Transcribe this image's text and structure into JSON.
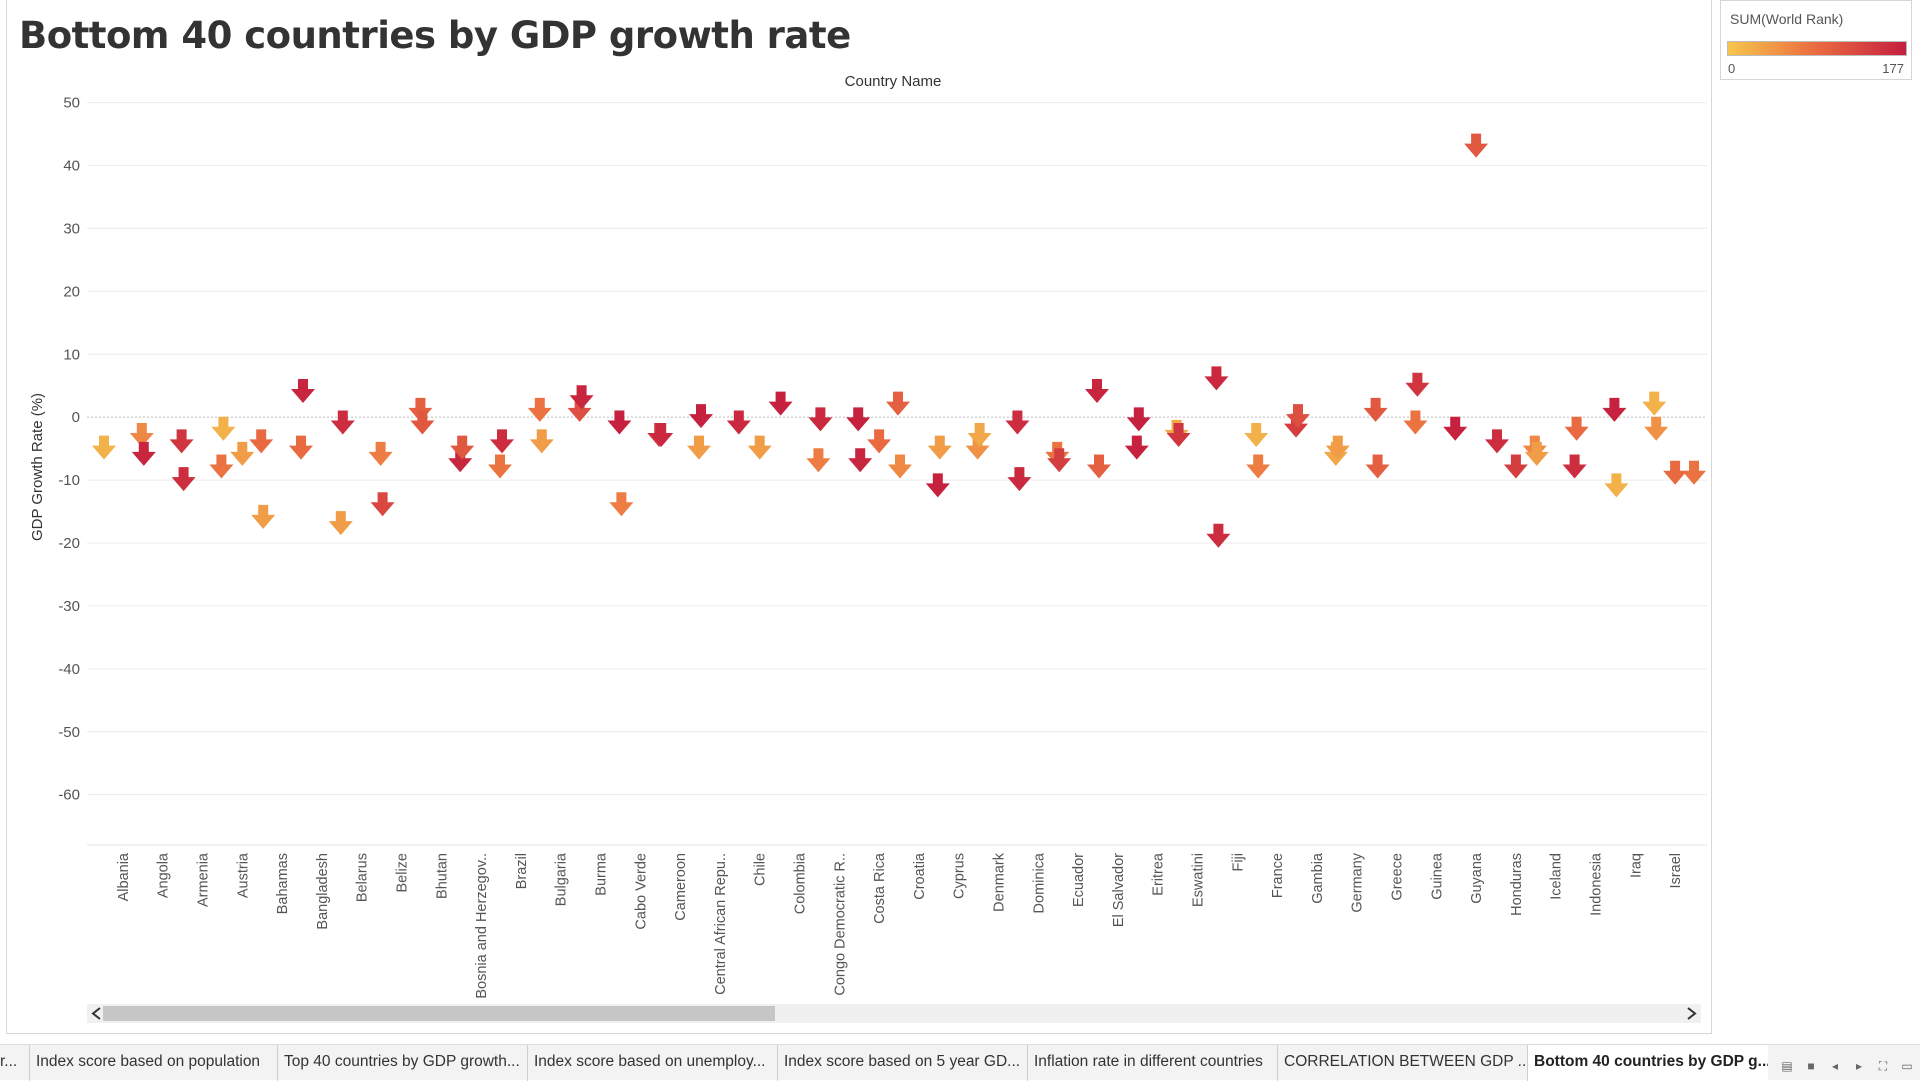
{
  "title": "Bottom 40 countries by GDP growth rate",
  "chart_data": {
    "type": "scatter",
    "mark": "down-arrow",
    "title": "Bottom 40 countries by GDP growth rate",
    "x_header": "Country Name",
    "ylabel": "GDP Growth Rate (%)",
    "ylim": [
      -68,
      52
    ],
    "y_ticks": [
      50,
      40,
      30,
      20,
      10,
      0,
      -10,
      -20,
      -30,
      -40,
      -50,
      -60
    ],
    "grid": true,
    "color_encoding": {
      "field": "SUM(World Rank)",
      "min": 0,
      "max": 177,
      "min_color": "#f6c64c",
      "mid_color": "#ea6a40",
      "max_color": "#c51f3f"
    },
    "categories": [
      "Albania",
      "Angola",
      "Armenia",
      "Austria",
      "Bahamas",
      "Bangladesh",
      "Belarus",
      "Belize",
      "Bhutan",
      "Bosnia and Herzegov..",
      "Brazil",
      "Bulgaria",
      "Burma",
      "Cabo Verde",
      "Cameroon",
      "Central African Repu..",
      "Chile",
      "Colombia",
      "Congo Democratic R..",
      "Costa Rica",
      "Croatia",
      "Cyprus",
      "Denmark",
      "Dominica",
      "Ecuador",
      "El Salvador",
      "Eritrea",
      "Eswatini",
      "Fiji",
      "France",
      "Gambia",
      "Germany",
      "Greece",
      "Guinea",
      "Guyana",
      "Honduras",
      "Iceland",
      "Indonesia",
      "Iraq",
      "Israel"
    ],
    "points": [
      {
        "country": "Albania",
        "y": -5,
        "rank": 20
      },
      {
        "country": "Albania",
        "y": -3,
        "rank": 60
      },
      {
        "country": "Angola",
        "y": -6,
        "rank": 170
      },
      {
        "country": "Angola",
        "y": -4,
        "rank": 150
      },
      {
        "country": "Armenia",
        "y": -10,
        "rank": 160
      },
      {
        "country": "Armenia",
        "y": -8,
        "rank": 80
      },
      {
        "country": "Austria",
        "y": -2,
        "rank": 20
      },
      {
        "country": "Austria",
        "y": -6,
        "rank": 40
      },
      {
        "country": "Austria",
        "y": -4,
        "rank": 90
      },
      {
        "country": "Bahamas",
        "y": -16,
        "rank": 40
      },
      {
        "country": "Bahamas",
        "y": -5,
        "rank": 90
      },
      {
        "country": "Bangladesh",
        "y": 4,
        "rank": 170
      },
      {
        "country": "Bangladesh",
        "y": -17,
        "rank": 40
      },
      {
        "country": "Belarus",
        "y": -1,
        "rank": 160
      },
      {
        "country": "Belarus",
        "y": -6,
        "rank": 70
      },
      {
        "country": "Belize",
        "y": -14,
        "rank": 130
      },
      {
        "country": "Belize",
        "y": 1,
        "rank": 100
      },
      {
        "country": "Bhutan",
        "y": -1,
        "rank": 110
      },
      {
        "country": "Bhutan",
        "y": -7,
        "rank": 170
      },
      {
        "country": "Bosnia and Herzegov..",
        "y": -5,
        "rank": 110
      },
      {
        "country": "Bosnia and Herzegov..",
        "y": -8,
        "rank": 80
      },
      {
        "country": "Brazil",
        "y": -4,
        "rank": 160
      },
      {
        "country": "Brazil",
        "y": 1,
        "rank": 80
      },
      {
        "country": "Bulgaria",
        "y": -4,
        "rank": 40
      },
      {
        "country": "Bulgaria",
        "y": 1,
        "rank": 120
      },
      {
        "country": "Burma",
        "y": 3,
        "rank": 170
      },
      {
        "country": "Burma",
        "y": -1,
        "rank": 175
      },
      {
        "country": "Cabo Verde",
        "y": -14,
        "rank": 70
      },
      {
        "country": "Cabo Verde",
        "y": -3,
        "rank": 150
      },
      {
        "country": "Cameroon",
        "y": -3,
        "rank": 165
      },
      {
        "country": "Cameroon",
        "y": -5,
        "rank": 40
      },
      {
        "country": "Central African Repu..",
        "y": 0,
        "rank": 175
      },
      {
        "country": "Central African Repu..",
        "y": -1,
        "rank": 165
      },
      {
        "country": "Chile",
        "y": -5,
        "rank": 40
      },
      {
        "country": "Colombia",
        "y": 2,
        "rank": 175
      },
      {
        "country": "Colombia",
        "y": -7,
        "rank": 70
      },
      {
        "country": "Congo Democratic R..",
        "y": -0.5,
        "rank": 165
      },
      {
        "country": "Congo Democratic R..",
        "y": -0.5,
        "rank": 175
      },
      {
        "country": "Costa Rica",
        "y": -7,
        "rank": 170
      },
      {
        "country": "Costa Rica",
        "y": -4,
        "rank": 90
      },
      {
        "country": "Costa Rica",
        "y": 2,
        "rank": 100
      },
      {
        "country": "Croatia",
        "y": -8,
        "rank": 60
      },
      {
        "country": "Croatia",
        "y": -11,
        "rank": 175
      },
      {
        "country": "Cyprus",
        "y": -5,
        "rank": 40
      },
      {
        "country": "Cyprus",
        "y": -5,
        "rank": 50
      },
      {
        "country": "Denmark",
        "y": -3,
        "rank": 30
      },
      {
        "country": "Denmark",
        "y": -1,
        "rank": 160
      },
      {
        "country": "Dominica",
        "y": -10,
        "rank": 165
      },
      {
        "country": "Dominica",
        "y": -6,
        "rank": 80
      },
      {
        "country": "Ecuador",
        "y": -7,
        "rank": 140
      },
      {
        "country": "Ecuador",
        "y": 4,
        "rank": 170
      },
      {
        "country": "El Salvador",
        "y": -8,
        "rank": 100
      },
      {
        "country": "El Salvador",
        "y": -5,
        "rank": 175
      },
      {
        "country": "Eritrea",
        "y": -0.5,
        "rank": 175
      },
      {
        "country": "Eritrea",
        "y": -2.5,
        "rank": 30
      },
      {
        "country": "Eswatini",
        "y": -3,
        "rank": 150
      },
      {
        "country": "Eswatini",
        "y": 6,
        "rank": 165
      },
      {
        "country": "Fiji",
        "y": -19,
        "rank": 160
      },
      {
        "country": "Fiji",
        "y": -3,
        "rank": 20
      },
      {
        "country": "France",
        "y": -8,
        "rank": 70
      },
      {
        "country": "France",
        "y": -1.5,
        "rank": 140
      },
      {
        "country": "Gambia",
        "y": 0,
        "rank": 120
      },
      {
        "country": "Gambia",
        "y": -6,
        "rank": 30
      },
      {
        "country": "Germany",
        "y": -5,
        "rank": 40
      },
      {
        "country": "Germany",
        "y": 1,
        "rank": 110
      },
      {
        "country": "Greece",
        "y": -8,
        "rank": 100
      },
      {
        "country": "Greece",
        "y": -1,
        "rank": 80
      },
      {
        "country": "Guinea",
        "y": 5,
        "rank": 150
      },
      {
        "country": "Guinea",
        "y": -2,
        "rank": 175
      },
      {
        "country": "Guyana",
        "y": 43,
        "rank": 110
      },
      {
        "country": "Honduras",
        "y": -4,
        "rank": 160
      },
      {
        "country": "Honduras",
        "y": -8,
        "rank": 140
      },
      {
        "country": "Honduras",
        "y": -5,
        "rank": 60
      },
      {
        "country": "Iceland",
        "y": -6,
        "rank": 40
      },
      {
        "country": "Iceland",
        "y": -8,
        "rank": 160
      },
      {
        "country": "Indonesia",
        "y": -2,
        "rank": 90
      },
      {
        "country": "Indonesia",
        "y": 1,
        "rank": 175
      },
      {
        "country": "Iraq",
        "y": -11,
        "rank": 20
      },
      {
        "country": "Iraq",
        "y": 2,
        "rank": 20
      },
      {
        "country": "Israel",
        "y": -2,
        "rank": 50
      },
      {
        "country": "Israel",
        "y": -9,
        "rank": 90
      },
      {
        "country": "Israel",
        "y": -9,
        "rank": 80
      }
    ]
  },
  "legend": {
    "title": "SUM(World Rank)",
    "min_label": "0",
    "max_label": "177"
  },
  "tabs": [
    {
      "label": "r..."
    },
    {
      "label": "Index score based on population"
    },
    {
      "label": "Top 40 countries by GDP growth..."
    },
    {
      "label": "Index score based on unemploy..."
    },
    {
      "label": "Index score based on 5 year GD..."
    },
    {
      "label": "Inflation rate in different countries"
    },
    {
      "label": "CORRELATION BETWEEN GDP ..."
    },
    {
      "label": "Bottom 40 countries by GDP g...",
      "active": true
    }
  ],
  "tab_controls": [
    "grid-view-icon",
    "filmstrip-icon",
    "prev-sheet-icon",
    "next-sheet-icon",
    "fullscreen-icon",
    "presentation-icon"
  ]
}
